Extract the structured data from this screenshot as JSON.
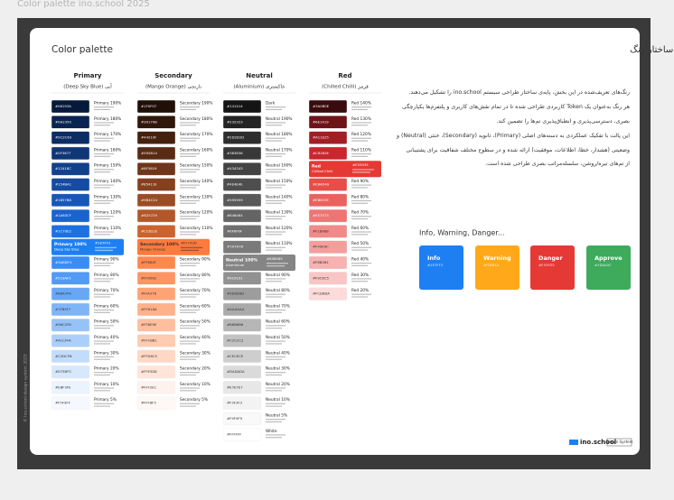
{
  "page_title": "Color palette ino.school 2025",
  "header": {
    "title": "Color palette",
    "title_fa": "ساختار رنگ"
  },
  "palettes": [
    {
      "name": "Primary",
      "subtitle": "(Deep Sky Blue) آبی",
      "swatches": [
        {
          "hex": "#06193A",
          "label": "Primary 190%"
        },
        {
          "hex": "#0A2350",
          "label": "Primary 180%"
        },
        {
          "hex": "#0C2C63",
          "label": "Primary 170%"
        },
        {
          "hex": "#0F3677",
          "label": "Primary 160%"
        },
        {
          "hex": "#12418C",
          "label": "Primary 150%"
        },
        {
          "hex": "#154BA1",
          "label": "Primary 140%"
        },
        {
          "hex": "#1857B8",
          "label": "Primary 130%"
        },
        {
          "hex": "#1A63CF",
          "label": "Primary 120%"
        },
        {
          "hex": "#1C70E2",
          "label": "Primary 110%"
        },
        {
          "hex": "#1E7FF3",
          "label": "Primary 100%",
          "sublabel": "Deep Sky Blue"
        },
        {
          "hex": "#3A8DF4",
          "label": "Primary 90%"
        },
        {
          "hex": "#519AF5",
          "label": "Primary 80%"
        },
        {
          "hex": "#68A7F6",
          "label": "Primary 70%"
        },
        {
          "hex": "#7FB5F7",
          "label": "Primary 60%"
        },
        {
          "hex": "#96C2F8",
          "label": "Primary 50%"
        },
        {
          "hex": "#ACCFFA",
          "label": "Primary 40%"
        },
        {
          "hex": "#C2DCFB",
          "label": "Primary 30%"
        },
        {
          "hex": "#D7E8FC",
          "label": "Primary 20%"
        },
        {
          "hex": "#EBF3FE",
          "label": "Primary 10%"
        },
        {
          "hex": "#F5F9FF",
          "label": "Primary 5%"
        }
      ]
    },
    {
      "name": "Secondary",
      "subtitle": "(Mango Orange) نارنجی",
      "swatches": [
        {
          "hex": "#1F0F07",
          "label": "Secondary 190%"
        },
        {
          "hex": "#30170B",
          "label": "Secondary 180%"
        },
        {
          "hex": "#44210F",
          "label": "Secondary 170%"
        },
        {
          "hex": "#592B14",
          "label": "Secondary 160%"
        },
        {
          "hex": "#6F3619",
          "label": "Secondary 150%"
        },
        {
          "hex": "#85411E",
          "label": "Secondary 140%"
        },
        {
          "hex": "#9B4C24",
          "label": "Secondary 130%"
        },
        {
          "hex": "#B25729",
          "label": "Secondary 120%"
        },
        {
          "hex": "#CC622E",
          "label": "Secondary 110%"
        },
        {
          "hex": "#FF7A3D",
          "label": "Secondary 100%",
          "sublabel": "Mango Orange"
        },
        {
          "hex": "#FF884F",
          "label": "Secondary 90%"
        },
        {
          "hex": "#FF9562",
          "label": "Secondary 80%"
        },
        {
          "hex": "#FFA376",
          "label": "Secondary 70%"
        },
        {
          "hex": "#FFB18A",
          "label": "Secondary 60%"
        },
        {
          "hex": "#FFBE9E",
          "label": "Secondary 50%"
        },
        {
          "hex": "#FFCBB1",
          "label": "Secondary 40%"
        },
        {
          "hex": "#FFD8C5",
          "label": "Secondary 30%"
        },
        {
          "hex": "#FFE5D8",
          "label": "Secondary 20%"
        },
        {
          "hex": "#FFF2EC",
          "label": "Secondary 10%"
        },
        {
          "hex": "#FFF8F5",
          "label": "Secondary 5%"
        }
      ]
    },
    {
      "name": "Neutral",
      "subtitle": "(Aluminium) خاکستری",
      "swatches": [
        {
          "hex": "#141414",
          "label": "Dark"
        },
        {
          "hex": "#232323",
          "label": "Neutral 190%"
        },
        {
          "hex": "#2D2D2D",
          "label": "Neutral 180%"
        },
        {
          "hex": "#383838",
          "label": "Neutral 170%"
        },
        {
          "hex": "#434343",
          "label": "Neutral 160%"
        },
        {
          "hex": "#4E4E4E",
          "label": "Neutral 150%"
        },
        {
          "hex": "#595959",
          "label": "Neutral 140%"
        },
        {
          "hex": "#646464",
          "label": "Neutral 130%"
        },
        {
          "hex": "#6F6F6F",
          "label": "Neutral 120%"
        },
        {
          "hex": "#7A7A7A",
          "label": "Neutral 110%"
        },
        {
          "hex": "#858585",
          "label": "Neutral 100%",
          "sublabel": "Aluminium"
        },
        {
          "hex": "#919191",
          "label": "Neutral 90%"
        },
        {
          "hex": "#9D9D9D",
          "label": "Neutral 80%"
        },
        {
          "hex": "#AAAAAA",
          "label": "Neutral 70%"
        },
        {
          "hex": "#B6B6B6",
          "label": "Neutral 60%"
        },
        {
          "hex": "#C2C2C2",
          "label": "Neutral 50%"
        },
        {
          "hex": "#CECECE",
          "label": "Neutral 40%"
        },
        {
          "hex": "#DADADA",
          "label": "Neutral 30%"
        },
        {
          "hex": "#E7E7E7",
          "label": "Neutral 20%"
        },
        {
          "hex": "#F3F3F3",
          "label": "Neutral 10%"
        },
        {
          "hex": "#F9F9F9",
          "label": "Neutral 5%"
        },
        {
          "hex": "#FFFFFF",
          "label": "White"
        }
      ]
    },
    {
      "name": "Red",
      "subtitle": "(Chilled Chilli) قرمز",
      "swatches": [
        {
          "hex": "#3A0B0E",
          "label": "Red 140%"
        },
        {
          "hex": "#6E1419",
          "label": "Red 130%"
        },
        {
          "hex": "#A11E25",
          "label": "Red 120%"
        },
        {
          "hex": "#C9262E",
          "label": "Red 110%"
        },
        {
          "hex": "#E53935",
          "label": "Red",
          "sublabel": "Chilled Chilli"
        },
        {
          "hex": "#E84D49",
          "label": "Red 90%"
        },
        {
          "hex": "#EB615E",
          "label": "Red 80%"
        },
        {
          "hex": "#EE7573",
          "label": "Red 70%"
        },
        {
          "hex": "#F18A88",
          "label": "Red 60%"
        },
        {
          "hex": "#F49E9C",
          "label": "Red 50%"
        },
        {
          "hex": "#F6B2B1",
          "label": "Red 40%"
        },
        {
          "hex": "#F9C6C5",
          "label": "Red 30%"
        },
        {
          "hex": "#FCDBDA",
          "label": "Red 20%"
        }
      ]
    }
  ],
  "description": [
    "رنگ‌های تعریف‌شده در این بخش، پایه‌ی ساختار طراحی سیستم ino.school را تشکیل می‌دهند.",
    "هر رنگ به‌عنوان یک Token کاربردی طراحی شده تا در تمام نقش‌های کاربری و پلتفرم‌ها یکپارچگی",
    "بصری، دسترسی‌پذیری و انطباق‌پذیری تم‌ها را تضمین کند.",
    "این پالت با تفکیک عملکردی به دسته‌های اصلی (Primary)، ثانویه (Secondary)، خنثی (Neutral) و",
    "وضعیتی (هشدار، خطا، اطلاعات، موفقیت) ارائه شده و در سطوح مختلف شفافیت برای پشتیبانی",
    "از تم‌های تیره/روشن، سلسله‌مراتب بصری طراحی شده است."
  ],
  "status": {
    "title": "Info, Warning, Danger...",
    "cards": [
      {
        "label": "Info",
        "hex": "#1E7FF3"
      },
      {
        "label": "Warning",
        "hex": "#FFA81A"
      },
      {
        "label": "Danger",
        "hex": "#E53935"
      },
      {
        "label": "Approve",
        "hex": "#3DAA5C"
      }
    ]
  },
  "footer": {
    "logo": "ino.school",
    "badge": "Design System",
    "copyright": "© Ino.school design system 2025"
  }
}
